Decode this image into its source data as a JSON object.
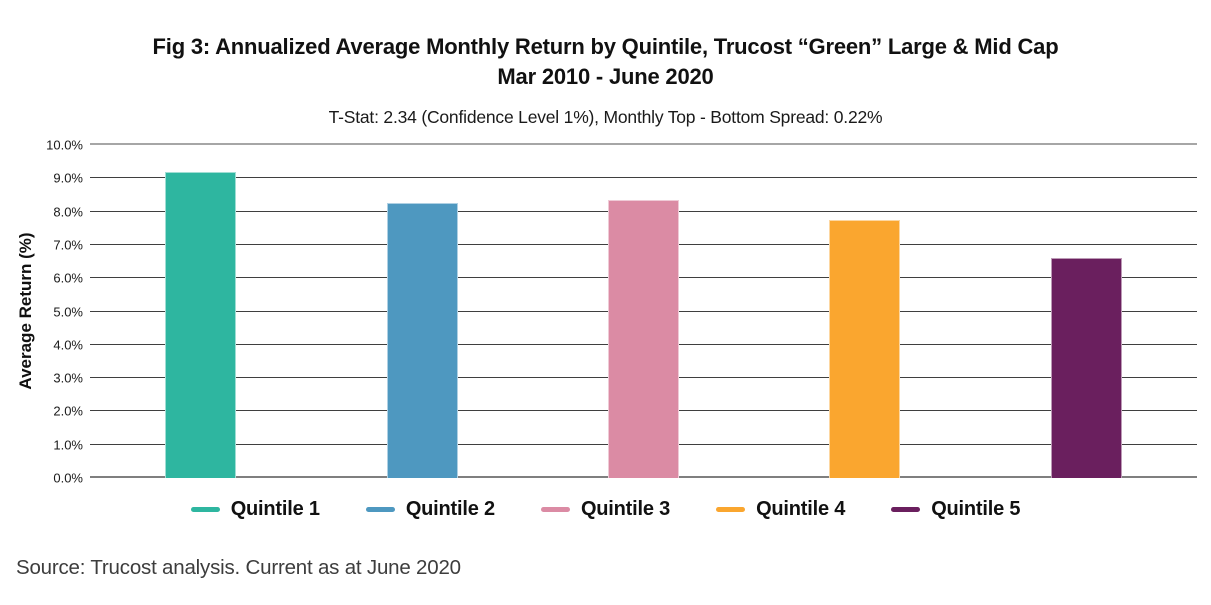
{
  "figure": {
    "title_line1": "Fig 3: Annualized Average Monthly Return by Quintile, Trucost “Green” Large & Mid Cap",
    "title_line2": "Mar 2010 - June 2020",
    "subtitle": "T-Stat: 2.34 (Confidence Level 1%), Monthly Top - Bottom Spread: 0.22%",
    "source": "Source: Trucost analysis. Current as at June 2020"
  },
  "chart_data": {
    "type": "bar",
    "title": "Fig 3: Annualized Average Monthly Return by Quintile, Trucost “Green” Large & Mid Cap Mar 2010 - June 2020",
    "subtitle": "T-Stat: 2.34 (Confidence Level 1%), Monthly Top - Bottom Spread: 0.22%",
    "categories": [
      "Quintile 1",
      "Quintile 2",
      "Quintile 3",
      "Quintile 4",
      "Quintile 5"
    ],
    "values": [
      9.2,
      8.25,
      8.35,
      7.75,
      6.6
    ],
    "unit": "%",
    "colors": [
      "#2EB6A0",
      "#4E98C0",
      "#DB8BA4",
      "#FAA62F",
      "#6A1F5E"
    ],
    "xlabel": "",
    "ylabel": "Average Return (%)",
    "ylim": [
      0,
      10
    ],
    "ytick_labels": [
      "0.0%",
      "1.0%",
      "2.0%",
      "3.0%",
      "4.0%",
      "5.0%",
      "6.0%",
      "7.0%",
      "8.0%",
      "9.0%",
      "10.0%"
    ],
    "grid": true,
    "legend_position": "bottom",
    "legend": [
      "Quintile 1",
      "Quintile 2",
      "Quintile 3",
      "Quintile 4",
      "Quintile 5"
    ],
    "source": "Source: Trucost analysis. Current as at June 2020"
  }
}
